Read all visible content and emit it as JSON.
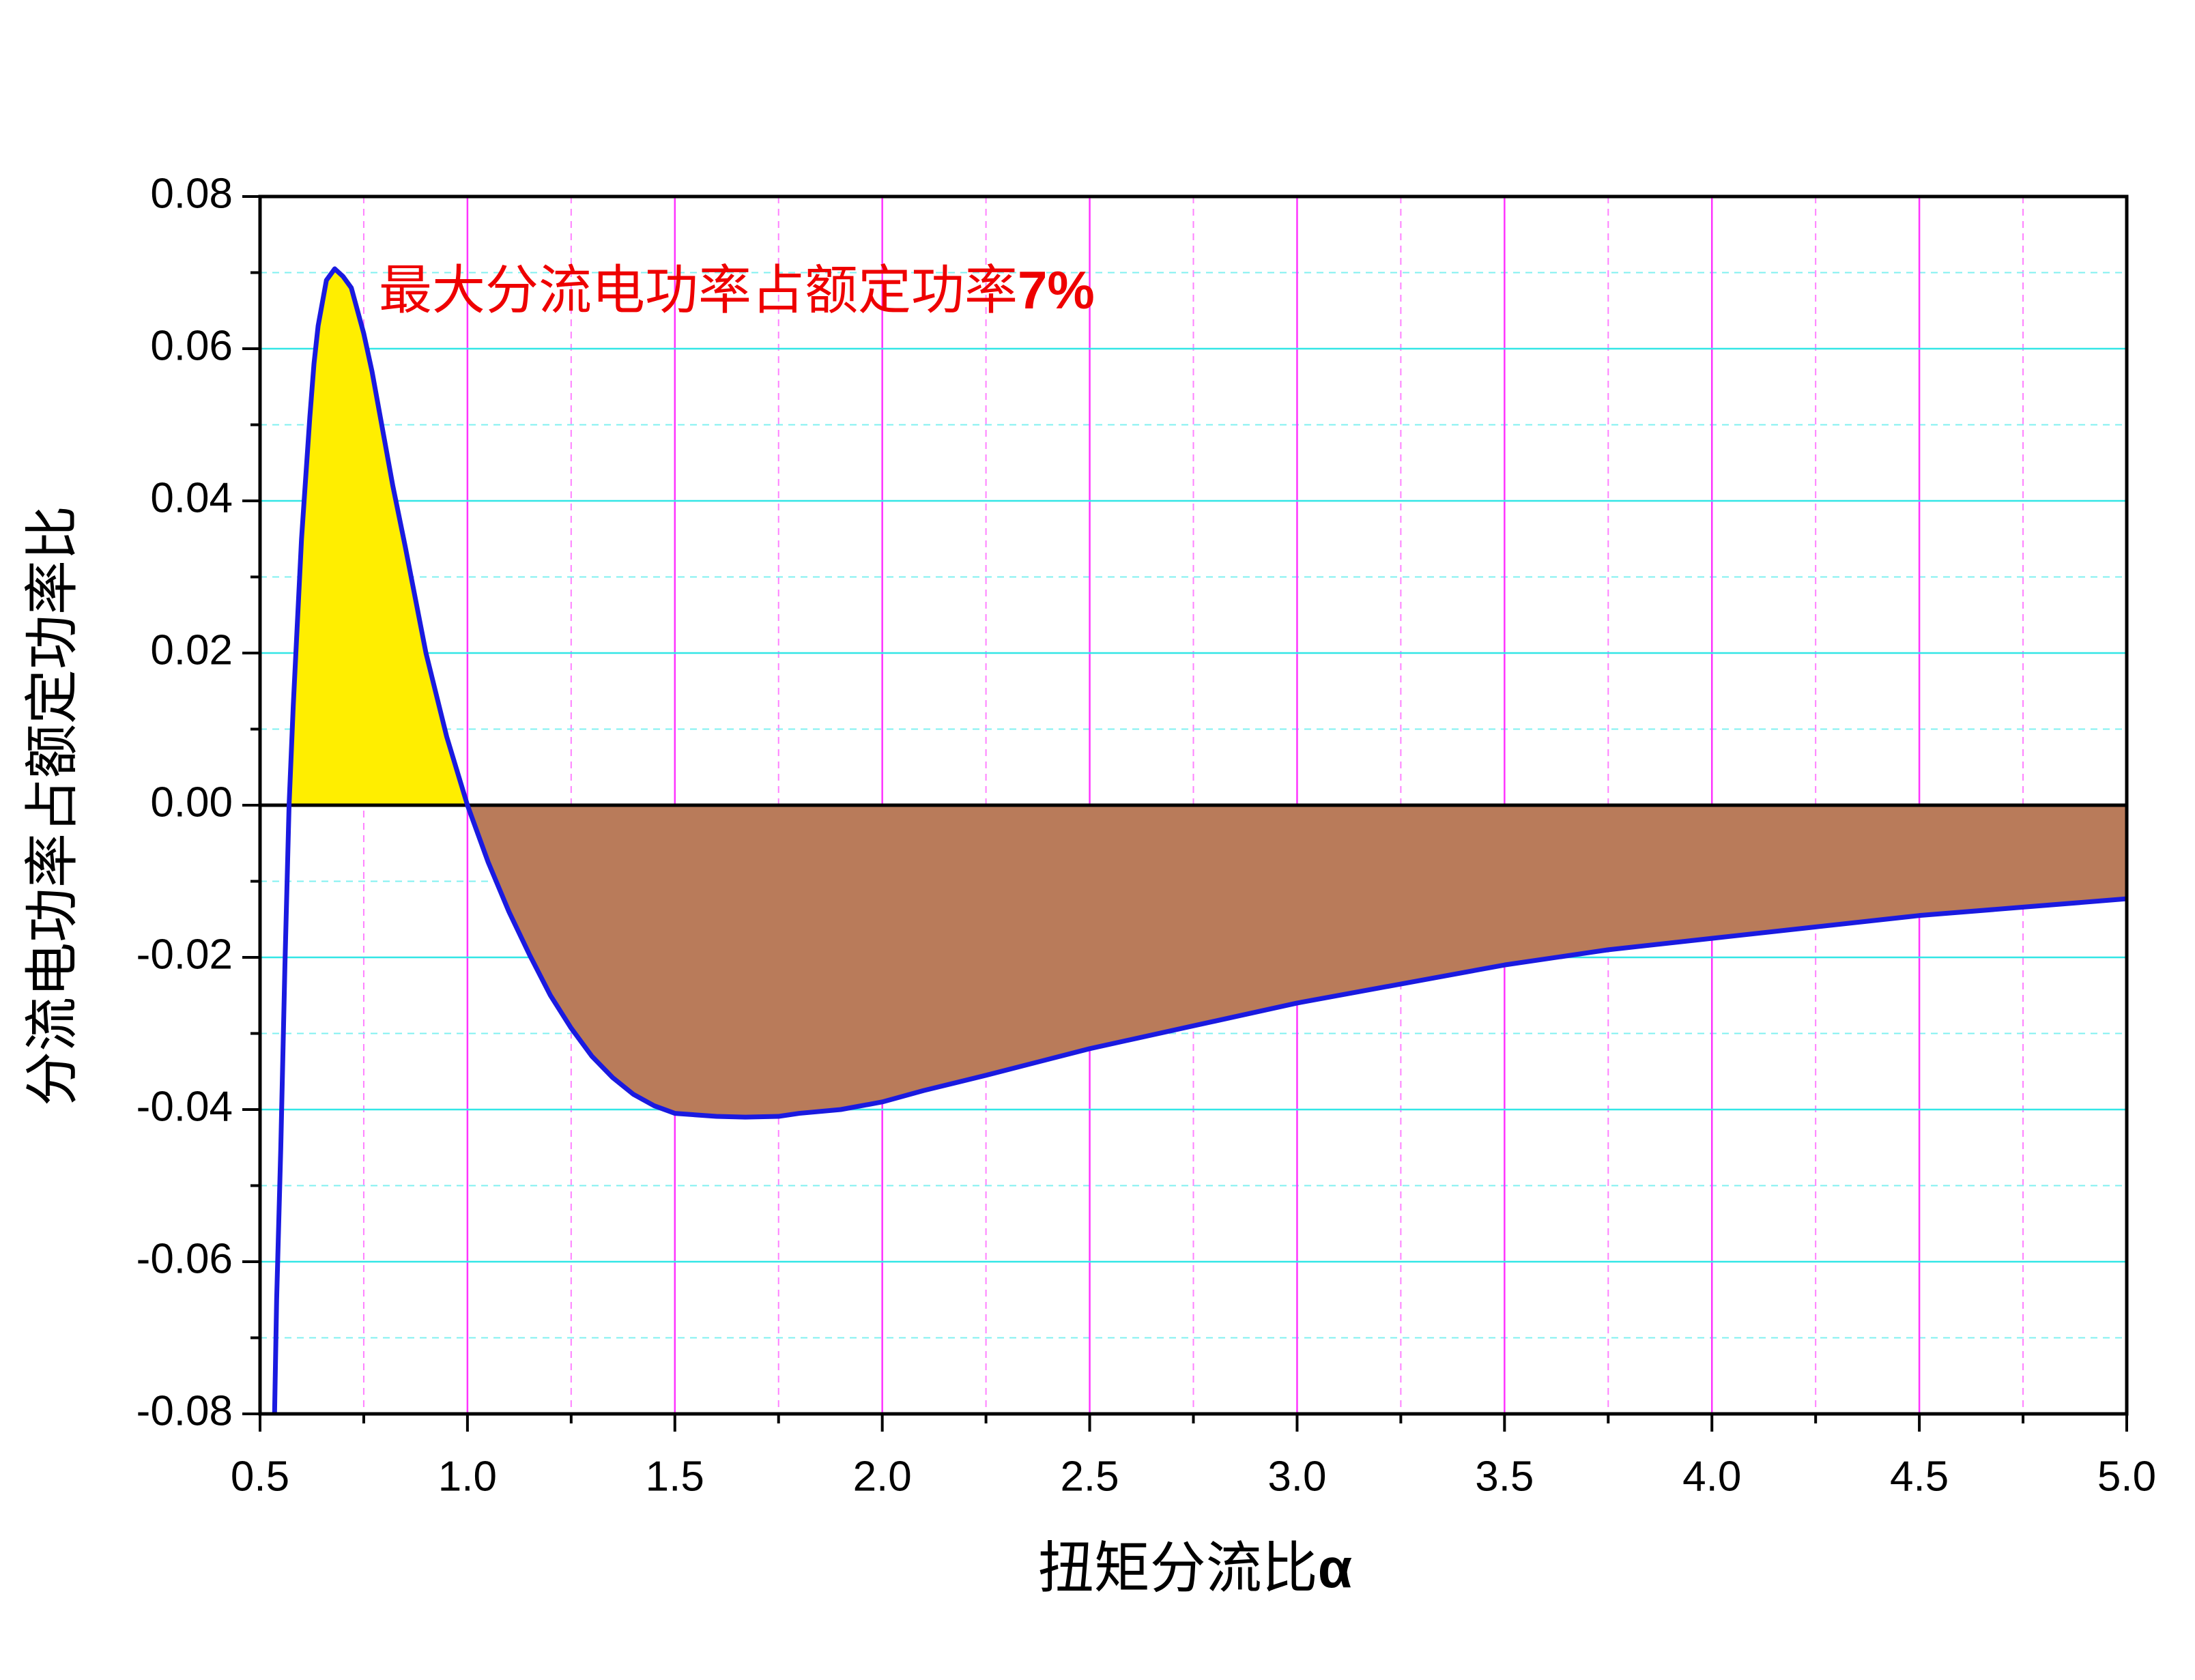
{
  "chart_data": {
    "type": "line",
    "annotation": [
      "最大分流电功率占额定功率",
      "7%"
    ],
    "xlabel": [
      "扭矩分流比",
      "α"
    ],
    "ylabel": "分流电功率占额定功率比",
    "x": [
      0.535,
      0.54,
      0.55,
      0.56,
      0.57,
      0.58,
      0.6,
      0.62,
      0.63,
      0.64,
      0.66,
      0.68,
      0.7,
      0.72,
      0.75,
      0.77,
      0.8,
      0.82,
      0.85,
      0.9,
      0.95,
      1.0,
      1.05,
      1.1,
      1.15,
      1.2,
      1.25,
      1.3,
      1.35,
      1.4,
      1.45,
      1.5,
      1.6,
      1.67,
      1.75,
      1.8,
      1.9,
      2.0,
      2.1,
      2.25,
      2.5,
      2.75,
      3.0,
      3.25,
      3.5,
      3.75,
      4.0,
      4.25,
      4.5,
      4.75,
      5.0
    ],
    "series": [
      {
        "color": "#1a1ae0",
        "values": [
          -0.08,
          -0.065,
          -0.045,
          -0.021,
          0.0,
          0.013,
          0.035,
          0.051,
          0.058,
          0.063,
          0.069,
          0.0705,
          0.0695,
          0.068,
          0.062,
          0.057,
          0.048,
          0.042,
          0.034,
          0.02,
          0.009,
          0.0,
          -0.0075,
          -0.014,
          -0.0197,
          -0.025,
          -0.0293,
          -0.033,
          -0.0358,
          -0.038,
          -0.0395,
          -0.0405,
          -0.0409,
          -0.041,
          -0.0409,
          -0.0405,
          -0.04,
          -0.039,
          -0.0375,
          -0.0355,
          -0.032,
          -0.029,
          -0.026,
          -0.0235,
          -0.021,
          -0.019,
          -0.0175,
          -0.016,
          -0.0145,
          -0.0134,
          -0.0123
        ]
      }
    ],
    "fill_positive_color": "#ffee00",
    "fill_negative_color": "#b97b5a",
    "xlim": [
      0.5,
      5.0
    ],
    "xticks": [
      0.5,
      {
        "value": 1.0,
        "label": "1.0"
      },
      1.5,
      {
        "value": 2.0,
        "label": "2.0"
      },
      2.5,
      {
        "value": 3.0,
        "label": "3.0"
      },
      3.5,
      {
        "value": 4.0,
        "label": "4.0"
      },
      4.5,
      {
        "value": 5.0,
        "label": "5.0"
      }
    ],
    "ylim": [
      -0.08,
      0.08
    ],
    "yticks": [
      -0.08,
      -0.06,
      -0.04,
      -0.02,
      {
        "value": 0,
        "label": "0.00"
      },
      0.02,
      0.04,
      0.06,
      0.08
    ],
    "grid": true
  }
}
